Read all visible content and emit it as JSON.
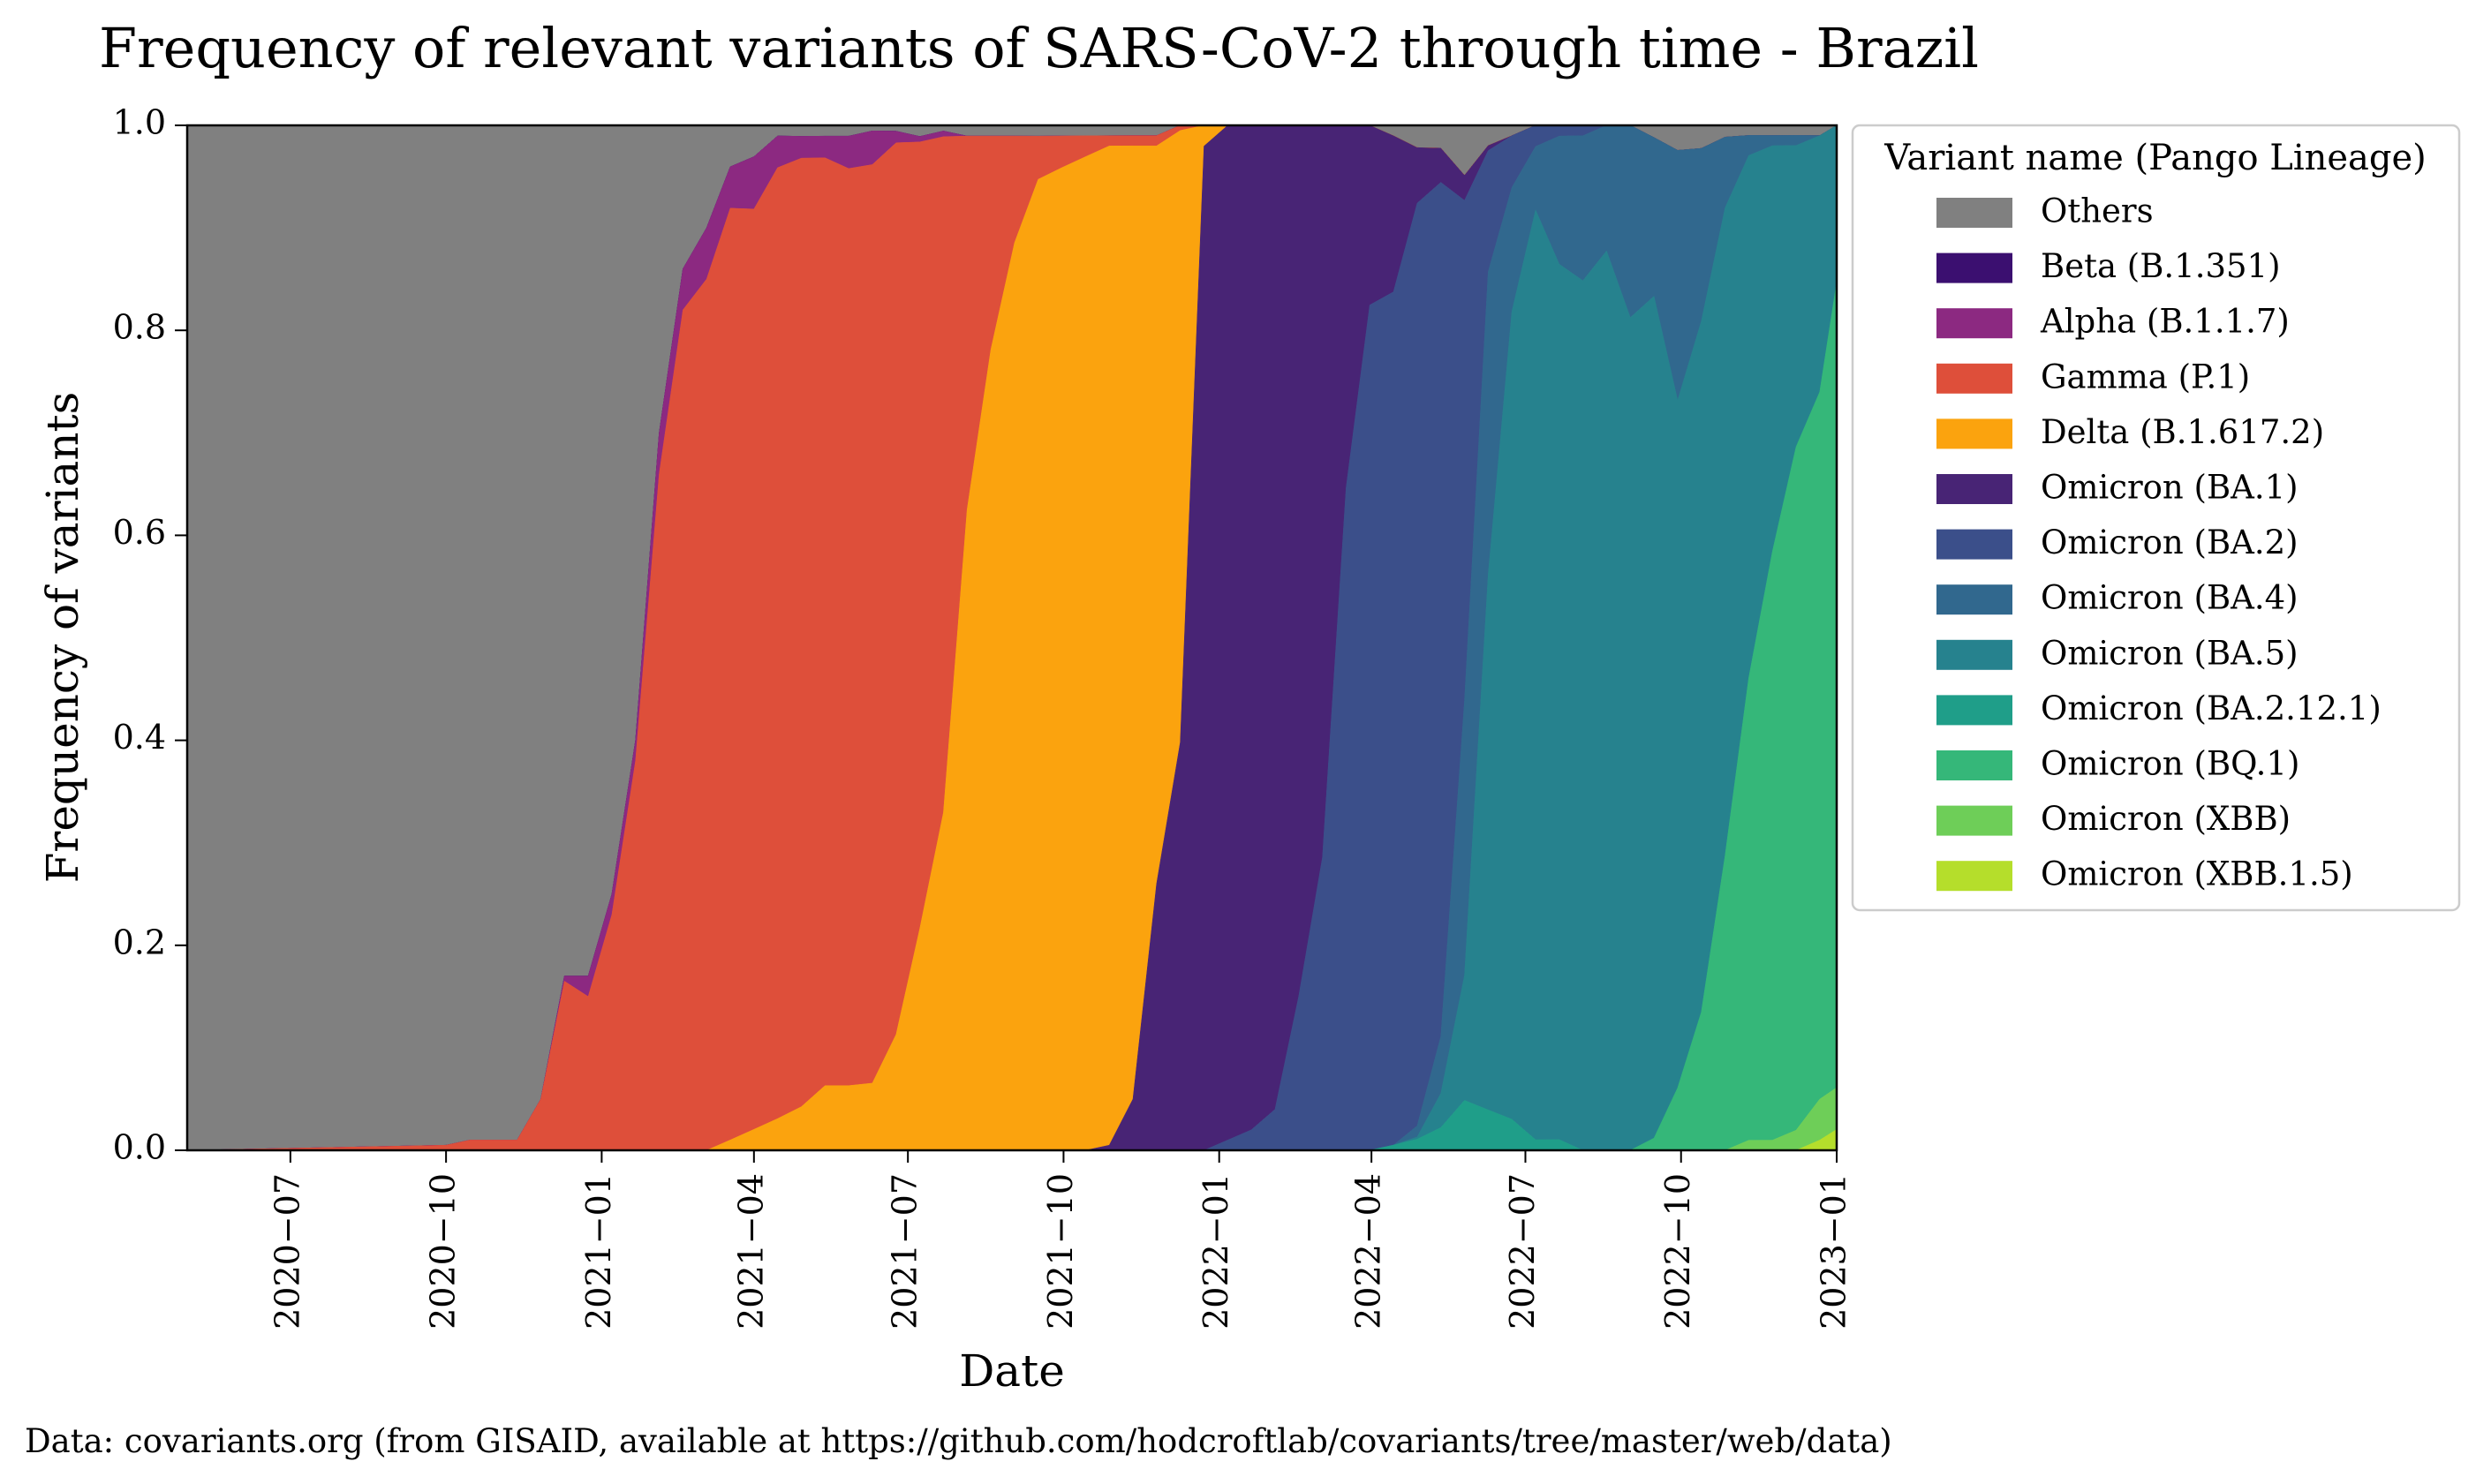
{
  "chart_data": {
    "type": "area",
    "title": "Frequency of relevant variants of SARS-CoV-2 through time - Brazil",
    "xlabel": "Date",
    "ylabel": "Frequency of variants",
    "xlim": [
      "2020-05-01",
      "2023-01-01"
    ],
    "ylim": [
      0,
      1
    ],
    "grid": false,
    "legend_position": "outside-right",
    "legend_title": "Variant name (Pango Lineage)",
    "x_ticks": [
      "2020-07-01",
      "2020-10-01",
      "2021-01-01",
      "2021-04-01",
      "2021-07-01",
      "2021-10-01",
      "2022-01-01",
      "2022-04-01",
      "2022-07-01",
      "2022-10-01",
      "2023-01-01"
    ],
    "x_tick_labels": [
      "2020−07",
      "2020−10",
      "2021−01",
      "2021−04",
      "2021−07",
      "2021−10",
      "2022−01",
      "2022−04",
      "2022−07",
      "2022−10",
      "2023−01"
    ],
    "y_ticks": [
      0.0,
      0.2,
      0.4,
      0.6,
      0.8,
      1.0
    ],
    "y_tick_labels": [
      "0.0",
      "0.2",
      "0.4",
      "0.6",
      "0.8",
      "1.0"
    ],
    "x": [
      "2020-05-01",
      "2020-10-01",
      "2020-10-15",
      "2020-10-29",
      "2020-11-12",
      "2020-11-26",
      "2020-12-10",
      "2020-12-24",
      "2021-01-07",
      "2021-01-21",
      "2021-02-04",
      "2021-02-18",
      "2021-03-04",
      "2021-03-18",
      "2021-04-01",
      "2021-04-15",
      "2021-04-29",
      "2021-05-13",
      "2021-05-27",
      "2021-06-10",
      "2021-06-24",
      "2021-07-08",
      "2021-07-22",
      "2021-08-05",
      "2021-08-19",
      "2021-09-02",
      "2021-09-16",
      "2021-09-30",
      "2021-10-14",
      "2021-10-28",
      "2021-11-11",
      "2021-11-25",
      "2021-12-09",
      "2021-12-23",
      "2022-01-06",
      "2022-01-20",
      "2022-02-03",
      "2022-02-17",
      "2022-03-03",
      "2022-03-17",
      "2022-03-31",
      "2022-04-14",
      "2022-04-28",
      "2022-05-12",
      "2022-05-26",
      "2022-06-09",
      "2022-06-23",
      "2022-07-07",
      "2022-07-21",
      "2022-08-04",
      "2022-08-18",
      "2022-09-01",
      "2022-09-15",
      "2022-09-29",
      "2022-10-13",
      "2022-10-27",
      "2022-11-10",
      "2022-11-24",
      "2022-12-08",
      "2022-12-22",
      "2023-01-01"
    ],
    "series": [
      {
        "name": "Others",
        "color": "#808080",
        "values": [
          1.0,
          0.995,
          0.99,
          0.99,
          0.99,
          0.95,
          0.83,
          0.83,
          0.75,
          0.6,
          0.3,
          0.14,
          0.1,
          0.04,
          0.03,
          0.01,
          0.01,
          0.01,
          0.01,
          0.005,
          0.005,
          0.01,
          0.005,
          0.01,
          0.01,
          0.01,
          0.01,
          0.01,
          0.01,
          0.01,
          0.01,
          0.01,
          0.0,
          0.0,
          0.0,
          0.0,
          0.0,
          0.0,
          0.0,
          0.0,
          0.0,
          0.01,
          0.02,
          0.02,
          0.02,
          0.02,
          0.01,
          0.0,
          0.0,
          0.0,
          0.0,
          0.0,
          0.01,
          0.02,
          0.02,
          0.01,
          0.01,
          0.01,
          0.01,
          0.01,
          0.0
        ]
      },
      {
        "name": "Beta (B.1.351)",
        "color": "#3b0f70",
        "values": [
          0,
          0,
          0,
          0,
          0,
          0,
          0,
          0,
          0,
          0,
          0,
          0,
          0,
          0,
          0,
          0,
          0,
          0,
          0,
          0,
          0,
          0,
          0,
          0,
          0,
          0,
          0,
          0,
          0,
          0,
          0,
          0,
          0,
          0,
          0,
          0,
          0,
          0,
          0,
          0,
          0,
          0,
          0,
          0,
          0,
          0,
          0,
          0,
          0,
          0,
          0,
          0,
          0,
          0,
          0,
          0,
          0,
          0,
          0,
          0,
          0
        ]
      },
      {
        "name": "Alpha (B.1.1.7)",
        "color": "#8c2981",
        "values": [
          0,
          0,
          0,
          0,
          0,
          0,
          0.005,
          0.02,
          0.02,
          0.02,
          0.04,
          0.04,
          0.05,
          0.04,
          0.05,
          0.03,
          0.02,
          0.02,
          0.03,
          0.03,
          0.01,
          0.005,
          0.005,
          0,
          0,
          0,
          0,
          0,
          0,
          0,
          0,
          0,
          0,
          0,
          0,
          0,
          0,
          0,
          0,
          0,
          0,
          0,
          0,
          0,
          0,
          0,
          0,
          0,
          0,
          0,
          0,
          0,
          0,
          0,
          0,
          0,
          0,
          0,
          0,
          0,
          0
        ]
      },
      {
        "name": "Gamma (P.1)",
        "color": "#de4f3a",
        "values": [
          0.0,
          0.005,
          0.01,
          0.01,
          0.01,
          0.05,
          0.165,
          0.15,
          0.23,
          0.38,
          0.66,
          0.82,
          0.85,
          0.9,
          0.88,
          0.9,
          0.87,
          0.86,
          0.85,
          0.82,
          0.77,
          0.71,
          0.6,
          0.35,
          0.2,
          0.1,
          0.04,
          0.03,
          0.02,
          0.01,
          0.01,
          0.01,
          0.005,
          0.0,
          0.0,
          0.0,
          0.0,
          0.0,
          0.0,
          0.0,
          0.0,
          0.0,
          0.0,
          0.0,
          0.0,
          0.0,
          0.0,
          0.0,
          0.0,
          0.0,
          0.0,
          0.0,
          0.0,
          0.0,
          0.0,
          0.0,
          0.0,
          0.0,
          0.0,
          0.0,
          0.0
        ]
      },
      {
        "name": "Delta (B.1.617.2)",
        "color": "#fba30e",
        "values": [
          0,
          0,
          0,
          0,
          0,
          0,
          0,
          0,
          0,
          0,
          0,
          0,
          0,
          0.01,
          0.02,
          0.03,
          0.04,
          0.06,
          0.06,
          0.06,
          0.1,
          0.2,
          0.3,
          0.6,
          0.75,
          0.85,
          0.9,
          0.93,
          0.95,
          0.97,
          0.93,
          0.72,
          0.6,
          0.02,
          0.0,
          0.0,
          0.0,
          0.0,
          0.0,
          0.0,
          0.0,
          0.0,
          0.0,
          0.0,
          0.0,
          0.0,
          0.0,
          0.0,
          0.0,
          0.0,
          0.0,
          0.0,
          0.0,
          0.0,
          0.0,
          0.0,
          0.0,
          0.0,
          0.0,
          0.0,
          0.0
        ]
      },
      {
        "name": "Omicron (BA.1)",
        "color": "#482475",
        "values": [
          0,
          0,
          0,
          0,
          0,
          0,
          0,
          0,
          0,
          0,
          0,
          0,
          0,
          0,
          0,
          0,
          0,
          0,
          0,
          0,
          0,
          0,
          0,
          0,
          0,
          0,
          0,
          0,
          0,
          0.005,
          0.05,
          0.26,
          0.4,
          0.97,
          0.99,
          0.98,
          0.96,
          0.85,
          0.7,
          0.35,
          0.17,
          0.15,
          0.05,
          0.03,
          0.01,
          0.005,
          0.0,
          0.0,
          0.0,
          0.0,
          0.0,
          0.0,
          0.0,
          0.0,
          0.0,
          0.0,
          0.0,
          0.0,
          0.0,
          0.0,
          0.0
        ]
      },
      {
        "name": "Omicron (BA.2)",
        "color": "#3b4f8a",
        "values": [
          0,
          0,
          0,
          0,
          0,
          0,
          0,
          0,
          0,
          0,
          0,
          0,
          0,
          0,
          0,
          0,
          0,
          0,
          0,
          0,
          0,
          0,
          0,
          0,
          0,
          0,
          0,
          0,
          0,
          0,
          0,
          0,
          0,
          0,
          0.01,
          0.02,
          0.04,
          0.15,
          0.28,
          0.64,
          0.8,
          0.82,
          0.83,
          0.75,
          0.2,
          0.12,
          0.05,
          0.02,
          0.01,
          0.01,
          0.0,
          0.0,
          0.0,
          0.0,
          0.0,
          0.0,
          0.0,
          0.0,
          0.0,
          0.0,
          0.0
        ]
      },
      {
        "name": "Omicron (BA.4)",
        "color": "#31688e",
        "values": [
          0,
          0,
          0,
          0,
          0,
          0,
          0,
          0,
          0,
          0,
          0,
          0,
          0,
          0,
          0,
          0,
          0,
          0,
          0,
          0,
          0,
          0,
          0,
          0,
          0,
          0,
          0,
          0,
          0,
          0,
          0,
          0,
          0,
          0,
          0,
          0,
          0,
          0,
          0,
          0,
          0,
          0,
          0.01,
          0.05,
          0.11,
          0.3,
          0.12,
          0.06,
          0.12,
          0.14,
          0.12,
          0.18,
          0.13,
          0.2,
          0.15,
          0.06,
          0.02,
          0.01,
          0.01,
          0.0,
          0.0
        ]
      },
      {
        "name": "Omicron (BA.5)",
        "color": "#26828e",
        "values": [
          0,
          0,
          0,
          0,
          0,
          0,
          0,
          0,
          0,
          0,
          0,
          0,
          0,
          0,
          0,
          0,
          0,
          0,
          0,
          0,
          0,
          0,
          0,
          0,
          0,
          0,
          0,
          0,
          0,
          0,
          0,
          0,
          0,
          0,
          0,
          0,
          0,
          0,
          0,
          0,
          0,
          0,
          0.002,
          0.03,
          0.05,
          0.53,
          0.78,
          0.88,
          0.82,
          0.84,
          0.86,
          0.78,
          0.69,
          0.55,
          0.6,
          0.55,
          0.52,
          0.4,
          0.3,
          0.25,
          0.15
        ]
      },
      {
        "name": "Omicron (BA.2.12.1)",
        "color": "#1f9e89",
        "values": [
          0,
          0,
          0,
          0,
          0,
          0,
          0,
          0,
          0,
          0,
          0,
          0,
          0,
          0,
          0,
          0,
          0,
          0,
          0,
          0,
          0,
          0,
          0,
          0,
          0,
          0,
          0,
          0,
          0,
          0,
          0,
          0,
          0,
          0,
          0,
          0,
          0,
          0,
          0,
          0,
          0,
          0.005,
          0.01,
          0.02,
          0.02,
          0.04,
          0.03,
          0.01,
          0.01,
          0.0,
          0.0,
          0.0,
          0.0,
          0.0,
          0.0,
          0.0,
          0.0,
          0.0,
          0.0,
          0.0,
          0.0
        ]
      },
      {
        "name": "Omicron (BQ.1)",
        "color": "#35b779",
        "values": [
          0,
          0,
          0,
          0,
          0,
          0,
          0,
          0,
          0,
          0,
          0,
          0,
          0,
          0,
          0,
          0,
          0,
          0,
          0,
          0,
          0,
          0,
          0,
          0,
          0,
          0,
          0,
          0,
          0,
          0,
          0,
          0,
          0,
          0,
          0,
          0,
          0,
          0,
          0,
          0,
          0,
          0,
          0,
          0,
          0,
          0,
          0,
          0,
          0,
          0,
          0,
          0,
          0.01,
          0.05,
          0.12,
          0.25,
          0.46,
          0.58,
          0.68,
          0.69,
          0.77
        ]
      },
      {
        "name": "Omicron (XBB)",
        "color": "#6ece58",
        "values": [
          0,
          0,
          0,
          0,
          0,
          0,
          0,
          0,
          0,
          0,
          0,
          0,
          0,
          0,
          0,
          0,
          0,
          0,
          0,
          0,
          0,
          0,
          0,
          0,
          0,
          0,
          0,
          0,
          0,
          0,
          0,
          0,
          0,
          0,
          0,
          0,
          0,
          0,
          0,
          0,
          0,
          0,
          0,
          0,
          0,
          0,
          0,
          0,
          0,
          0,
          0,
          0,
          0,
          0,
          0,
          0,
          0.01,
          0.01,
          0.02,
          0.04,
          0.04
        ]
      },
      {
        "name": "Omicron (XBB.1.5)",
        "color": "#b5de2b",
        "values": [
          0,
          0,
          0,
          0,
          0,
          0,
          0,
          0,
          0,
          0,
          0,
          0,
          0,
          0,
          0,
          0,
          0,
          0,
          0,
          0,
          0,
          0,
          0,
          0,
          0,
          0,
          0,
          0,
          0,
          0,
          0,
          0,
          0,
          0,
          0,
          0,
          0,
          0,
          0,
          0,
          0,
          0,
          0,
          0,
          0,
          0,
          0,
          0,
          0,
          0,
          0,
          0,
          0,
          0,
          0,
          0,
          0,
          0,
          0,
          0.01,
          0.02
        ]
      }
    ],
    "annotation": "Data: covariants.org (from GISAID, available at https://github.com/hodcroftlab/covariants/tree/master/web/data)"
  }
}
